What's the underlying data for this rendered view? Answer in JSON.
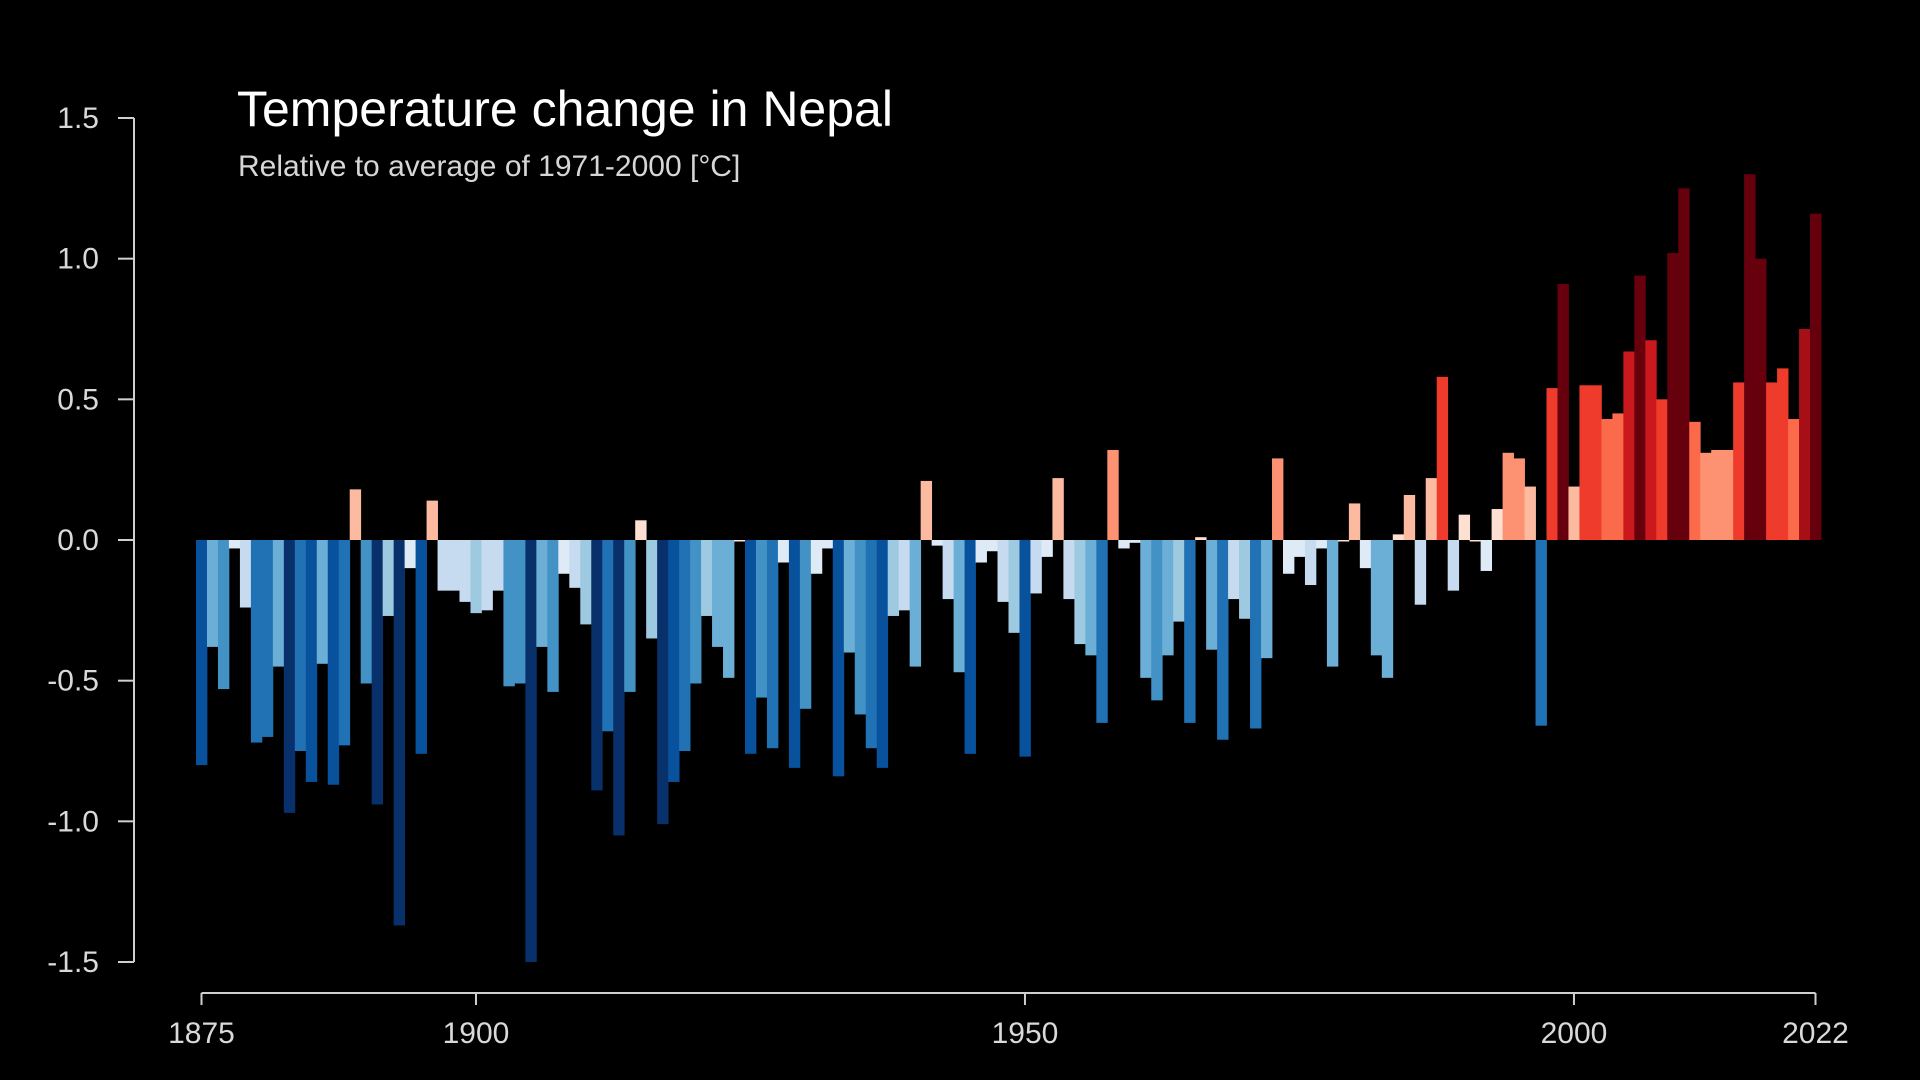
{
  "chart_data": {
    "type": "bar",
    "title": "Temperature change in Nepal",
    "subtitle": "Relative to average of 1971-2000  [°C]",
    "xlabel": "",
    "ylabel": "",
    "x_start": 1875,
    "x_end": 2022,
    "xlim": [
      1875,
      2022
    ],
    "ylim": [
      -1.5,
      1.5
    ],
    "x_ticks": [
      1875,
      1900,
      1950,
      2000,
      2022
    ],
    "x_tick_labels": [
      "1875",
      "1900",
      "1950",
      "2000",
      "2022"
    ],
    "y_ticks": [
      1.5,
      1.0,
      0.5,
      0.0,
      -0.5,
      -1.0,
      -1.5
    ],
    "y_tick_labels": [
      "1.5",
      "1.0",
      "0.5",
      "0.0",
      "-0.5",
      "-1.0",
      "-1.5"
    ],
    "grid": false,
    "legend": "none",
    "color_scale": {
      "min": -1.0,
      "max": 1.0,
      "colors": [
        "#08306b",
        "#08519c",
        "#2171b5",
        "#4292c6",
        "#6baed6",
        "#9ecae1",
        "#c6dbef",
        "#deebf7",
        "#fee0d2",
        "#fcbba1",
        "#fc9272",
        "#fb6a4a",
        "#ef3b2c",
        "#cb181d",
        "#a50f15",
        "#67000d"
      ]
    },
    "years": [
      1875,
      1876,
      1877,
      1878,
      1879,
      1880,
      1881,
      1882,
      1883,
      1884,
      1885,
      1886,
      1887,
      1888,
      1889,
      1890,
      1891,
      1892,
      1893,
      1894,
      1895,
      1896,
      1897,
      1898,
      1899,
      1900,
      1901,
      1902,
      1903,
      1904,
      1905,
      1906,
      1907,
      1908,
      1909,
      1910,
      1911,
      1912,
      1913,
      1914,
      1915,
      1916,
      1917,
      1918,
      1919,
      1920,
      1921,
      1922,
      1923,
      1924,
      1925,
      1926,
      1927,
      1928,
      1929,
      1930,
      1931,
      1932,
      1933,
      1934,
      1935,
      1936,
      1937,
      1938,
      1939,
      1940,
      1941,
      1942,
      1943,
      1944,
      1945,
      1946,
      1947,
      1948,
      1949,
      1950,
      1951,
      1952,
      1953,
      1954,
      1955,
      1956,
      1957,
      1958,
      1959,
      1960,
      1961,
      1962,
      1963,
      1964,
      1965,
      1966,
      1967,
      1968,
      1969,
      1970,
      1971,
      1972,
      1973,
      1974,
      1975,
      1976,
      1977,
      1978,
      1979,
      1980,
      1981,
      1982,
      1983,
      1984,
      1985,
      1986,
      1987,
      1988,
      1989,
      1990,
      1991,
      1992,
      1993,
      1994,
      1995,
      1996,
      1997,
      1998,
      1999,
      2000,
      2001,
      2002,
      2003,
      2004,
      2005,
      2006,
      2007,
      2008,
      2009,
      2010,
      2011,
      2012,
      2013,
      2014,
      2015,
      2016,
      2017,
      2018,
      2019,
      2020,
      2021,
      2022
    ],
    "values": [
      -0.8,
      -0.38,
      -0.53,
      -0.03,
      -0.24,
      -0.72,
      -0.7,
      -0.45,
      -0.97,
      -0.75,
      -0.86,
      -0.44,
      -0.87,
      -0.73,
      0.18,
      -0.51,
      -0.94,
      -0.27,
      -1.37,
      -0.1,
      -0.76,
      0.14,
      -0.18,
      -0.18,
      -0.22,
      -0.26,
      -0.25,
      -0.18,
      -0.52,
      -0.51,
      -1.5,
      -0.38,
      -0.54,
      -0.12,
      -0.17,
      -0.3,
      -0.89,
      -0.68,
      -1.05,
      -0.54,
      0.07,
      -0.35,
      -1.01,
      -0.86,
      -0.75,
      -0.51,
      -0.27,
      -0.38,
      -0.49,
      0.0,
      -0.76,
      -0.56,
      -0.74,
      -0.08,
      -0.81,
      -0.6,
      -0.12,
      -0.03,
      -0.84,
      -0.4,
      -0.62,
      -0.74,
      -0.81,
      -0.27,
      -0.25,
      -0.45,
      0.21,
      -0.02,
      -0.21,
      -0.47,
      -0.76,
      -0.08,
      -0.04,
      -0.22,
      -0.33,
      -0.77,
      -0.19,
      -0.06,
      0.22,
      -0.21,
      -0.37,
      -0.41,
      -0.65,
      0.32,
      -0.03,
      -0.01,
      -0.49,
      -0.57,
      -0.41,
      -0.29,
      -0.65,
      0.01,
      -0.39,
      -0.71,
      -0.21,
      -0.28,
      -0.67,
      -0.42,
      0.29,
      -0.12,
      -0.06,
      -0.16,
      -0.03,
      -0.45,
      0.0,
      0.13,
      -0.1,
      -0.41,
      -0.49,
      0.02,
      0.16,
      -0.23,
      0.22,
      0.58,
      -0.18,
      0.09,
      0.0,
      -0.11,
      0.11,
      0.31,
      0.29,
      0.19,
      -0.66,
      0.54,
      0.91,
      0.19,
      0.55,
      0.55,
      0.43,
      0.45,
      0.67,
      0.94,
      0.71,
      0.5,
      1.02,
      1.25,
      0.42,
      0.31,
      0.32,
      0.32,
      0.56,
      1.3,
      1.0,
      0.56,
      0.61,
      0.43,
      0.75,
      1.16
    ]
  }
}
